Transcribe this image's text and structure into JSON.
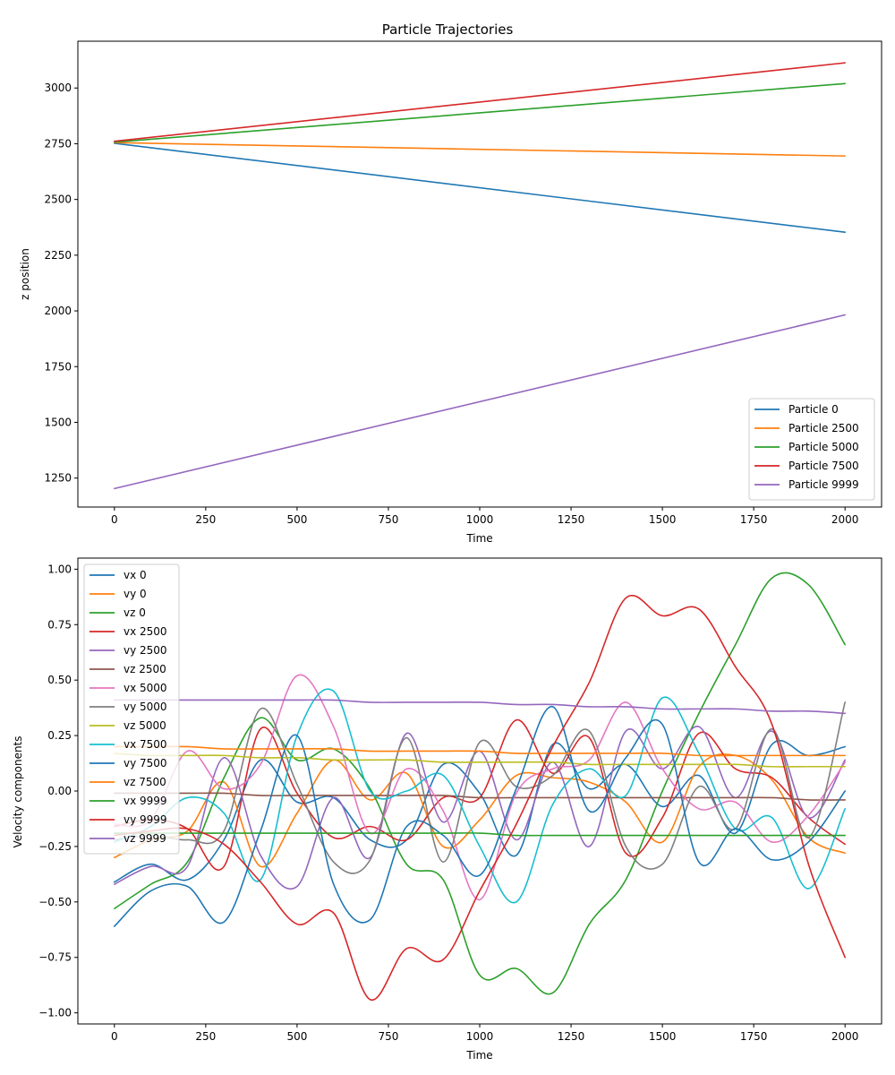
{
  "chart_data": [
    {
      "type": "line",
      "title": "Particle Trajectories",
      "xlabel": "Time",
      "ylabel": "z position",
      "xlim": [
        -100,
        2100
      ],
      "ylim": [
        1120,
        3210
      ],
      "xticks": [
        0,
        250,
        500,
        750,
        1000,
        1250,
        1500,
        1750,
        2000
      ],
      "yticks": [
        1250,
        1500,
        1750,
        2000,
        2250,
        2500,
        2750,
        3000
      ],
      "legend_position": "lower-right",
      "series": [
        {
          "name": "Particle 0",
          "color": "#1f77b4",
          "x": [
            0,
            2000
          ],
          "y": [
            2752,
            2353
          ]
        },
        {
          "name": "Particle 2500",
          "color": "#ff7f0e",
          "x": [
            0,
            2000
          ],
          "y": [
            2755,
            2695
          ]
        },
        {
          "name": "Particle 5000",
          "color": "#2ca02c",
          "x": [
            0,
            2000
          ],
          "y": [
            2757,
            3020
          ]
        },
        {
          "name": "Particle 7500",
          "color": "#d62728",
          "x": [
            0,
            2000
          ],
          "y": [
            2761,
            3113
          ]
        },
        {
          "name": "Particle 9999",
          "color": "#9467bd",
          "x": [
            0,
            2000
          ],
          "y": [
            1203,
            1982
          ]
        }
      ]
    },
    {
      "type": "line",
      "title": "",
      "xlabel": "Time",
      "ylabel": "Velocity components",
      "xlim": [
        -100,
        2100
      ],
      "ylim": [
        -1.05,
        1.05
      ],
      "xticks": [
        0,
        250,
        500,
        750,
        1000,
        1250,
        1500,
        1750,
        2000
      ],
      "yticks": [
        -1.0,
        -0.75,
        -0.5,
        -0.25,
        0.0,
        0.25,
        0.5,
        0.75,
        1.0
      ],
      "ytick_labels": [
        "−1.00",
        "−0.75",
        "−0.50",
        "−0.25",
        "0.00",
        "0.25",
        "0.50",
        "0.75",
        "1.00"
      ],
      "legend_position": "upper-left",
      "x": [
        0,
        100,
        200,
        300,
        400,
        500,
        600,
        700,
        800,
        900,
        1000,
        1100,
        1200,
        1300,
        1400,
        1500,
        1600,
        1700,
        1800,
        1900,
        2000
      ],
      "series": [
        {
          "name": "vx 0",
          "color": "#1f77b4",
          "values": [
            -0.41,
            -0.33,
            -0.4,
            -0.22,
            0.14,
            -0.05,
            -0.03,
            -0.22,
            -0.22,
            0.12,
            -0.01,
            -0.29,
            0.21,
            0.01,
            0.12,
            -0.07,
            0.07,
            -0.19,
            0.21,
            0.16,
            0.2
          ]
        },
        {
          "name": "vy 0",
          "color": "#ff7f0e",
          "values": [
            -0.3,
            -0.22,
            -0.18,
            0.04,
            -0.34,
            -0.1,
            0.14,
            -0.04,
            0.08,
            -0.25,
            -0.13,
            0.07,
            0.06,
            0.04,
            -0.05,
            -0.23,
            0.11,
            0.16,
            0.05,
            -0.21,
            -0.28
          ]
        },
        {
          "name": "vz 0",
          "color": "#2ca02c",
          "values": [
            -0.53,
            -0.42,
            -0.32,
            0.06,
            0.33,
            0.14,
            0.19,
            0.01,
            -0.33,
            -0.4,
            -0.83,
            -0.8,
            -0.91,
            -0.6,
            -0.4,
            0.0,
            0.35,
            0.66,
            0.96,
            0.93,
            0.66
          ]
        },
        {
          "name": "vx 2500",
          "color": "#d62728",
          "values": [
            -0.16,
            -0.13,
            -0.17,
            -0.34,
            0.28,
            -0.01,
            -0.21,
            -0.16,
            -0.22,
            -0.03,
            -0.03,
            0.32,
            0.08,
            0.24,
            -0.28,
            -0.12,
            0.26,
            0.1,
            0.06,
            -0.12,
            -0.24
          ]
        },
        {
          "name": "vy 2500",
          "color": "#9467bd",
          "values": [
            -0.42,
            -0.34,
            -0.34,
            0.15,
            -0.29,
            -0.43,
            -0.03,
            -0.3,
            0.26,
            -0.14,
            0.18,
            -0.22,
            0.13,
            -0.25,
            0.27,
            0.1,
            0.29,
            -0.03,
            0.27,
            -0.12,
            0.14
          ]
        },
        {
          "name": "vz 2500",
          "color": "#8c564b",
          "values": [
            -0.01,
            -0.01,
            -0.01,
            -0.01,
            -0.02,
            -0.02,
            -0.02,
            -0.02,
            -0.02,
            -0.02,
            -0.03,
            -0.03,
            -0.03,
            -0.03,
            -0.03,
            -0.03,
            -0.03,
            -0.03,
            -0.03,
            -0.04,
            -0.04
          ]
        },
        {
          "name": "vx 5000",
          "color": "#e377c2",
          "values": [
            -0.15,
            -0.13,
            0.18,
            0.01,
            0.12,
            0.52,
            0.29,
            -0.19,
            0.1,
            -0.09,
            -0.49,
            -0.01,
            0.1,
            0.14,
            0.4,
            0.1,
            -0.08,
            -0.05,
            -0.23,
            -0.11,
            0.13
          ]
        },
        {
          "name": "vy 5000",
          "color": "#7f7f7f",
          "values": [
            -0.22,
            -0.2,
            -0.22,
            -0.18,
            0.37,
            0.03,
            -0.32,
            -0.31,
            0.24,
            -0.32,
            0.22,
            0.02,
            0.07,
            0.27,
            -0.25,
            -0.33,
            0.02,
            -0.17,
            0.28,
            -0.21,
            0.4
          ]
        },
        {
          "name": "vz 5000",
          "color": "#bcbd22",
          "values": [
            0.17,
            0.16,
            0.16,
            0.16,
            0.15,
            0.15,
            0.14,
            0.14,
            0.14,
            0.13,
            0.13,
            0.13,
            0.13,
            0.12,
            0.12,
            0.12,
            0.12,
            0.12,
            0.11,
            0.11,
            0.11
          ]
        },
        {
          "name": "vx 7500",
          "color": "#17becf",
          "values": [
            -0.23,
            -0.16,
            -0.03,
            -0.1,
            -0.4,
            0.25,
            0.45,
            0.0,
            0.0,
            0.07,
            -0.25,
            -0.5,
            -0.06,
            0.1,
            -0.02,
            0.42,
            0.17,
            -0.17,
            -0.12,
            -0.44,
            -0.08
          ]
        },
        {
          "name": "vy 7500",
          "color": "#1f77b4",
          "values": [
            -0.61,
            -0.45,
            -0.43,
            -0.59,
            -0.18,
            0.25,
            -0.42,
            -0.58,
            -0.16,
            -0.2,
            -0.38,
            0.01,
            0.38,
            -0.09,
            0.15,
            0.3,
            -0.32,
            -0.17,
            -0.31,
            -0.23,
            0.0
          ]
        },
        {
          "name": "vz 7500",
          "color": "#ff7f0e",
          "values": [
            0.2,
            0.2,
            0.2,
            0.19,
            0.19,
            0.19,
            0.19,
            0.18,
            0.18,
            0.18,
            0.18,
            0.17,
            0.17,
            0.17,
            0.17,
            0.17,
            0.16,
            0.16,
            0.16,
            0.16,
            0.16
          ]
        },
        {
          "name": "vx 9999",
          "color": "#2ca02c",
          "values": [
            -0.19,
            -0.19,
            -0.19,
            -0.19,
            -0.19,
            -0.19,
            -0.19,
            -0.19,
            -0.19,
            -0.19,
            -0.19,
            -0.2,
            -0.2,
            -0.2,
            -0.2,
            -0.2,
            -0.2,
            -0.2,
            -0.2,
            -0.2,
            -0.2
          ]
        },
        {
          "name": "vy 9999",
          "color": "#d62728",
          "values": [
            -0.2,
            -0.18,
            -0.17,
            -0.24,
            -0.41,
            -0.6,
            -0.55,
            -0.94,
            -0.71,
            -0.76,
            -0.45,
            -0.15,
            0.2,
            0.49,
            0.87,
            0.79,
            0.82,
            0.56,
            0.3,
            -0.33,
            -0.75
          ]
        },
        {
          "name": "vz 9999",
          "color": "#9467bd",
          "values": [
            0.41,
            0.41,
            0.41,
            0.41,
            0.41,
            0.41,
            0.41,
            0.4,
            0.4,
            0.4,
            0.4,
            0.39,
            0.39,
            0.38,
            0.38,
            0.37,
            0.37,
            0.37,
            0.36,
            0.36,
            0.35
          ]
        }
      ]
    }
  ]
}
